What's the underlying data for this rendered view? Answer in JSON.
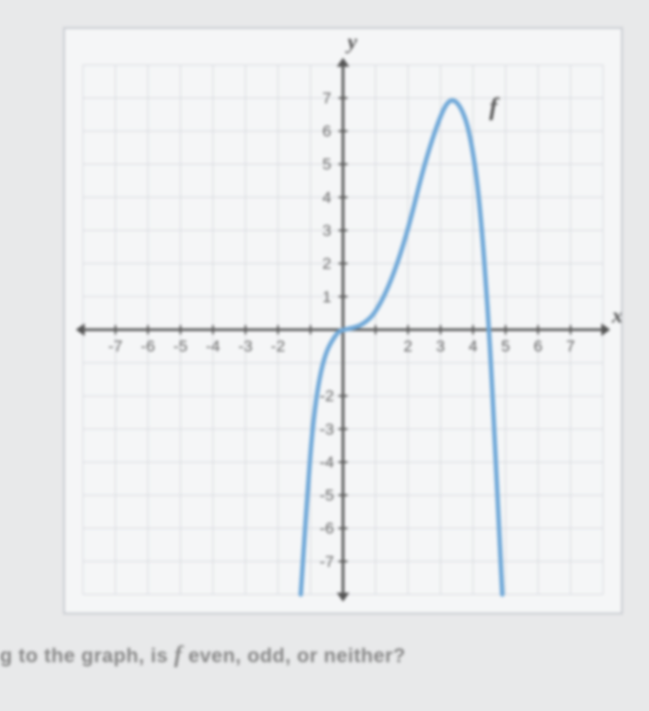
{
  "chart": {
    "type": "line",
    "xlabel": "x",
    "ylabel": "y",
    "curve_label": "f",
    "xlim": [
      -8,
      8
    ],
    "ylim": [
      -8,
      8
    ],
    "xtick_step": 1,
    "ytick_step": 1,
    "x_tick_labels": [
      "-7",
      "-6",
      "-5",
      "-4",
      "-3",
      "-2",
      "",
      "",
      "2",
      "3",
      "4",
      "5",
      "6",
      "7"
    ],
    "x_tick_positions": [
      -7,
      -6,
      -5,
      -4,
      -3,
      -2,
      -1,
      1,
      2,
      3,
      4,
      5,
      6,
      7
    ],
    "y_tick_labels": [
      "7",
      "6",
      "5",
      "4",
      "3",
      "2",
      "1",
      "-2",
      "-3",
      "-4",
      "-5",
      "-6",
      "-7"
    ],
    "y_tick_positions": [
      7,
      6,
      5,
      4,
      3,
      2,
      1,
      -2,
      -3,
      -4,
      -5,
      -6,
      -7
    ],
    "curve_points": [
      [
        -1.3,
        -8
      ],
      [
        -1.1,
        -5
      ],
      [
        -0.9,
        -2.5
      ],
      [
        -0.6,
        -0.8
      ],
      [
        -0.2,
        -0.1
      ],
      [
        0,
        0
      ],
      [
        0.3,
        0.05
      ],
      [
        0.6,
        0.15
      ],
      [
        1.0,
        0.5
      ],
      [
        1.5,
        1.5
      ],
      [
        2.0,
        3.0
      ],
      [
        2.5,
        5.0
      ],
      [
        3.0,
        6.5
      ],
      [
        3.3,
        7.0
      ],
      [
        3.6,
        6.8
      ],
      [
        3.9,
        6.0
      ],
      [
        4.2,
        4.0
      ],
      [
        4.5,
        0
      ],
      [
        4.7,
        -4
      ],
      [
        4.9,
        -8
      ]
    ],
    "colors": {
      "background": "#f5f6f7",
      "grid": "#d5d8dd",
      "axis": "#555555",
      "curve": "#6fa8d8",
      "text": "#666666"
    },
    "line_width": 5,
    "axis_width": 3,
    "grid_width": 1
  },
  "question": {
    "prefix": "g to the graph, is ",
    "func": "f",
    "suffix": " even, odd, or neither?"
  }
}
